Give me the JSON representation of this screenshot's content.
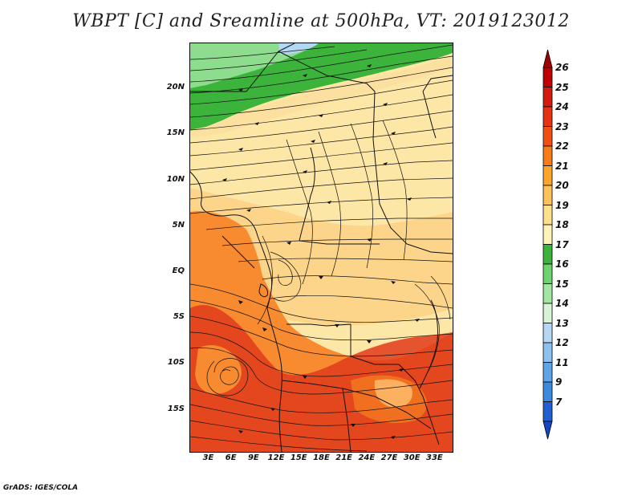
{
  "title": "WBPT [C] and Sreamline at 500hPa, VT: 2019123012",
  "credit": "GrADS: IGES/COLA",
  "lat_ticks": [
    {
      "label": "20N",
      "lat": 20
    },
    {
      "label": "15N",
      "lat": 15
    },
    {
      "label": "10N",
      "lat": 10
    },
    {
      "label": "5N",
      "lat": 5
    },
    {
      "label": "EQ",
      "lat": 0
    },
    {
      "label": "5S",
      "lat": -5
    },
    {
      "label": "10S",
      "lat": -10
    },
    {
      "label": "15S",
      "lat": -15
    }
  ],
  "lon_ticks": [
    {
      "label": "3E",
      "lon": 3
    },
    {
      "label": "6E",
      "lon": 6
    },
    {
      "label": "9E",
      "lon": 9
    },
    {
      "label": "12E",
      "lon": 12
    },
    {
      "label": "15E",
      "lon": 15
    },
    {
      "label": "18E",
      "lon": 18
    },
    {
      "label": "21E",
      "lon": 21
    },
    {
      "label": "24E",
      "lon": 24
    },
    {
      "label": "27E",
      "lon": 27
    },
    {
      "label": "30E",
      "lon": 30
    },
    {
      "label": "33E",
      "lon": 33
    }
  ],
  "map_extent": {
    "lon_min": 0.5,
    "lon_max": 35.3,
    "lat_min": -19.5,
    "lat_max": 25
  },
  "colorbar": {
    "labels": [
      "26",
      "25",
      "24",
      "23",
      "22",
      "21",
      "20",
      "19",
      "18",
      "17",
      "16",
      "15",
      "14",
      "13",
      "12",
      "11",
      "9",
      "7"
    ],
    "colors": [
      "#c00000",
      "#d41a0e",
      "#e63312",
      "#f04f14",
      "#f87a18",
      "#fca52c",
      "#fdc35a",
      "#fde08c",
      "#fff3b8",
      "#3cb43c",
      "#6ed26e",
      "#a2e6a2",
      "#d6f5d6",
      "#b4d8f4",
      "#8cc0ee",
      "#5ea6e8",
      "#3c8ae0",
      "#2060d0"
    ],
    "over_color": "#a00000",
    "under_color": "#1448c0"
  },
  "fill_colors": {
    "green": "#3cb43c",
    "light_green": "#8edc8e",
    "pale_yellow": "#fde7a6",
    "yellow": "#fcd58a",
    "orange": "#f88b30",
    "red_orange": "#ee5a1e",
    "red": "#e0391a",
    "light_blue": "#b4d8f4"
  }
}
